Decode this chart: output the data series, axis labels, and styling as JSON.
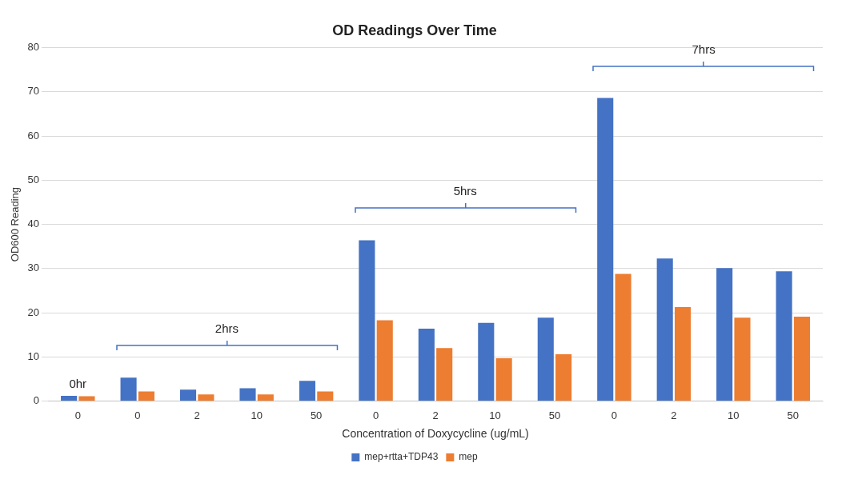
{
  "chart_data": {
    "type": "bar",
    "title": "OD Readings Over Time",
    "xlabel": "Concentration of Doxycycline (ug/mL)",
    "ylabel": "OD600 Reading",
    "categories": [
      "0",
      "0",
      "2",
      "10",
      "50",
      "0",
      "2",
      "10",
      "50",
      "0",
      "2",
      "10",
      "50"
    ],
    "series": [
      {
        "name": "mep+rtta+TDP43",
        "color": "#4472c4",
        "values": [
          1.2,
          5.3,
          2.6,
          2.9,
          4.6,
          36.4,
          16.4,
          17.7,
          18.9,
          68.6,
          32.3,
          30.1,
          29.4
        ]
      },
      {
        "name": "mep",
        "color": "#ed7d31",
        "values": [
          1.1,
          2.2,
          1.5,
          1.5,
          2.2,
          18.3,
          12.0,
          9.7,
          10.6,
          28.8,
          21.3,
          18.9,
          19.1
        ]
      }
    ],
    "ylim": [
      0,
      80
    ],
    "yticks": [
      0,
      10,
      20,
      30,
      40,
      50,
      60,
      70,
      80
    ],
    "grid": "y",
    "legend": "bottom",
    "annotations": [
      "0hr",
      "2hrs",
      "5hrs",
      "7hrs"
    ]
  }
}
